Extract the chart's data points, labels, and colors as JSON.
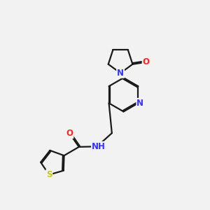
{
  "background_color": "#f2f2f2",
  "bond_color": "#1a1a1a",
  "N_color": "#3333ff",
  "O_color": "#ff2222",
  "S_color": "#cccc00",
  "line_width": 1.6,
  "dbo": 0.055,
  "figsize": [
    3.0,
    3.0
  ],
  "dpi": 100,
  "xlim": [
    0,
    10
  ],
  "ylim": [
    0,
    10
  ]
}
